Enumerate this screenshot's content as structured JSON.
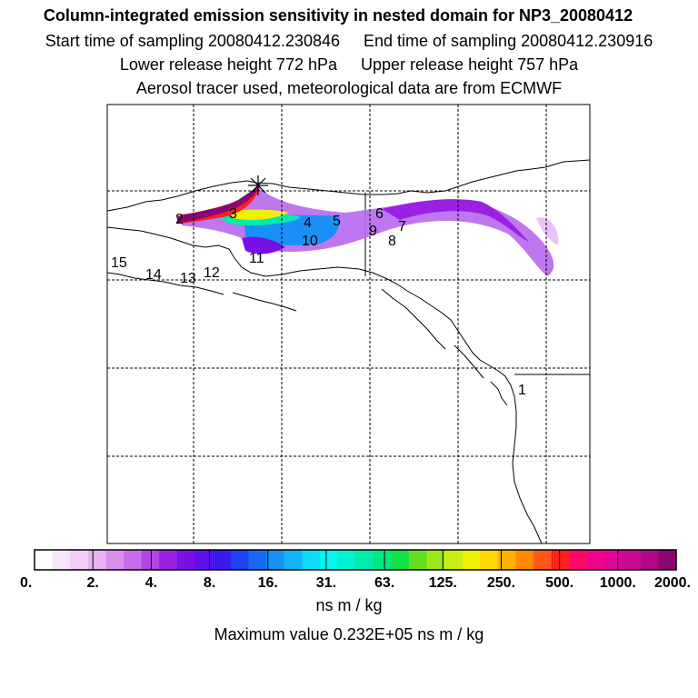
{
  "header": {
    "title": "Column-integrated emission sensitivity in nested domain for NP3_20080412",
    "start_label": "Start time of sampling 20080412.230846",
    "end_label": "End time of sampling 20080412.230916",
    "lower_label": "Lower release height  772 hPa",
    "upper_label": "Upper release height  757 hPa",
    "info": "Aerosol tracer used, meteorological data are from ECMWF"
  },
  "map": {
    "point_labels": [
      "1",
      "2",
      "3",
      "4",
      "5",
      "6",
      "7",
      "8",
      "9",
      "10",
      "11",
      "12",
      "13",
      "14",
      "15"
    ]
  },
  "colorbar": {
    "tick_labels": [
      "0.",
      "2.",
      "4.",
      "8.",
      "16.",
      "31.",
      "63.",
      "125.",
      "250.",
      "500.",
      "1000.",
      "2000."
    ],
    "colors": [
      "#ffffff",
      "#f7e6fa",
      "#f0ccf6",
      "#e8b3f2",
      "#d890ee",
      "#c86cea",
      "#b445e6",
      "#9b20e4",
      "#7a10e8",
      "#5a10ec",
      "#3a18f0",
      "#2040f4",
      "#1c68f6",
      "#1890f8",
      "#14b4f8",
      "#10d8f8",
      "#00f6f2",
      "#00f0d0",
      "#00ecaa",
      "#00e680",
      "#10e040",
      "#60e020",
      "#9ae81a",
      "#c8ee18",
      "#f0f000",
      "#ffd800",
      "#ffb000",
      "#ff8800",
      "#ff5818",
      "#ff2020",
      "#ff0868",
      "#f0048c",
      "#e0049c",
      "#cc0a98",
      "#b00888",
      "#8c0670"
    ],
    "units": "ns m / kg",
    "max_text": "Maximum value  0.232E+05 ns m / kg"
  }
}
